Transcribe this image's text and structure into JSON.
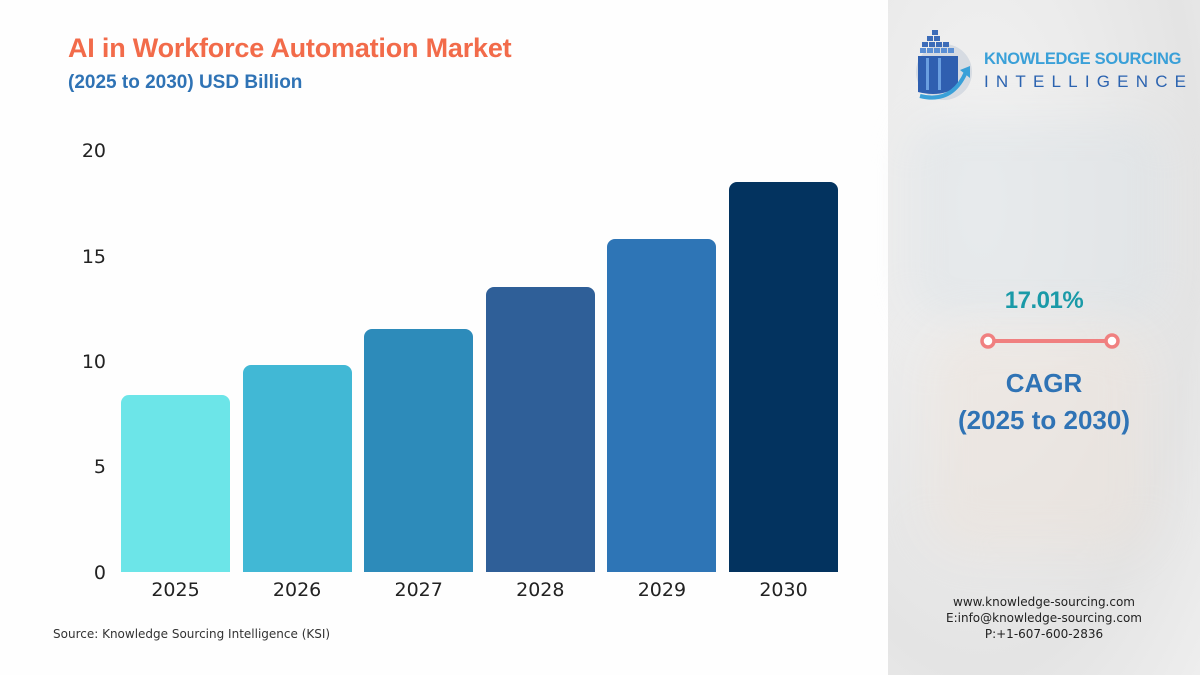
{
  "header": {
    "title": "AI in Workforce Automation Market",
    "subtitle": "(2025 to 2030) USD Billion"
  },
  "chart_data": {
    "type": "bar",
    "title": "AI in Workforce Automation Market",
    "subtitle": "(2025 to 2030) USD Billion",
    "xlabel": "",
    "ylabel": "USD Billion",
    "categories": [
      "2025",
      "2026",
      "2027",
      "2028",
      "2029",
      "2030"
    ],
    "values": [
      8.4,
      9.8,
      11.5,
      13.5,
      15.8,
      18.5
    ],
    "colors": [
      "#6ce5e8",
      "#41b8d5",
      "#2d8bba",
      "#2f5f98",
      "#2e75b6",
      "#03335f"
    ],
    "yticks": [
      "0",
      "5",
      "10",
      "15",
      "20"
    ],
    "ylim": [
      0,
      20
    ],
    "grid": false,
    "legend": "none"
  },
  "source": "Source: Knowledge Sourcing Intelligence (KSI)",
  "brand": {
    "logo_icon": "building-arrow-logo-icon",
    "line1": "KNOWLEDGE SOURCING",
    "line2": "INTELLIGENCE"
  },
  "cagr": {
    "value": "17.01%",
    "label": "CAGR",
    "period": "(2025 to 2030)",
    "accent_color": "#f08080"
  },
  "contact": {
    "website": "www.knowledge-sourcing.com",
    "email": "E:info@knowledge-sourcing.com",
    "phone": "P:+1-607-600-2836"
  }
}
